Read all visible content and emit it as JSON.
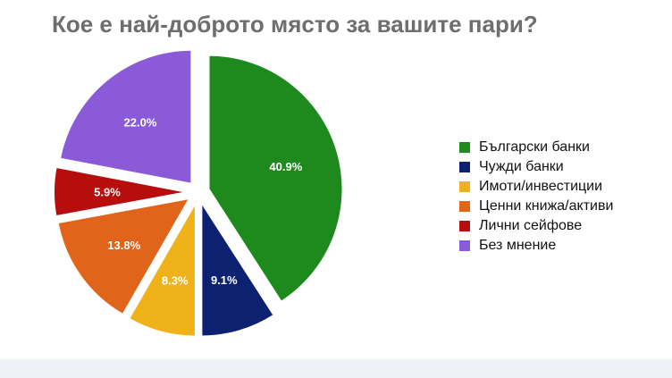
{
  "title": "Кое е най-доброто място за вашите пари?",
  "chart_data": {
    "type": "pie",
    "title": "Кое е най-доброто място за вашите пари?",
    "slices": [
      {
        "label": "Български банки",
        "value": 40.9,
        "display": "40.9%",
        "color": "#1e8a1e"
      },
      {
        "label": "Чужди банки",
        "value": 9.1,
        "display": "9.1%",
        "color": "#0c2270"
      },
      {
        "label": "Имоти/инвестиции",
        "value": 8.3,
        "display": "8.3%",
        "color": "#f0b21a"
      },
      {
        "label": "Ценни книжа/активи",
        "value": 13.8,
        "display": "13.8%",
        "color": "#e0641a"
      },
      {
        "label": "Лични сейфове",
        "value": 5.9,
        "display": "5.9%",
        "color": "#b80d0d"
      },
      {
        "label": "Без мнение",
        "value": 22.0,
        "display": "22.0%",
        "color": "#8a5ad8"
      }
    ],
    "legend_position": "right"
  }
}
